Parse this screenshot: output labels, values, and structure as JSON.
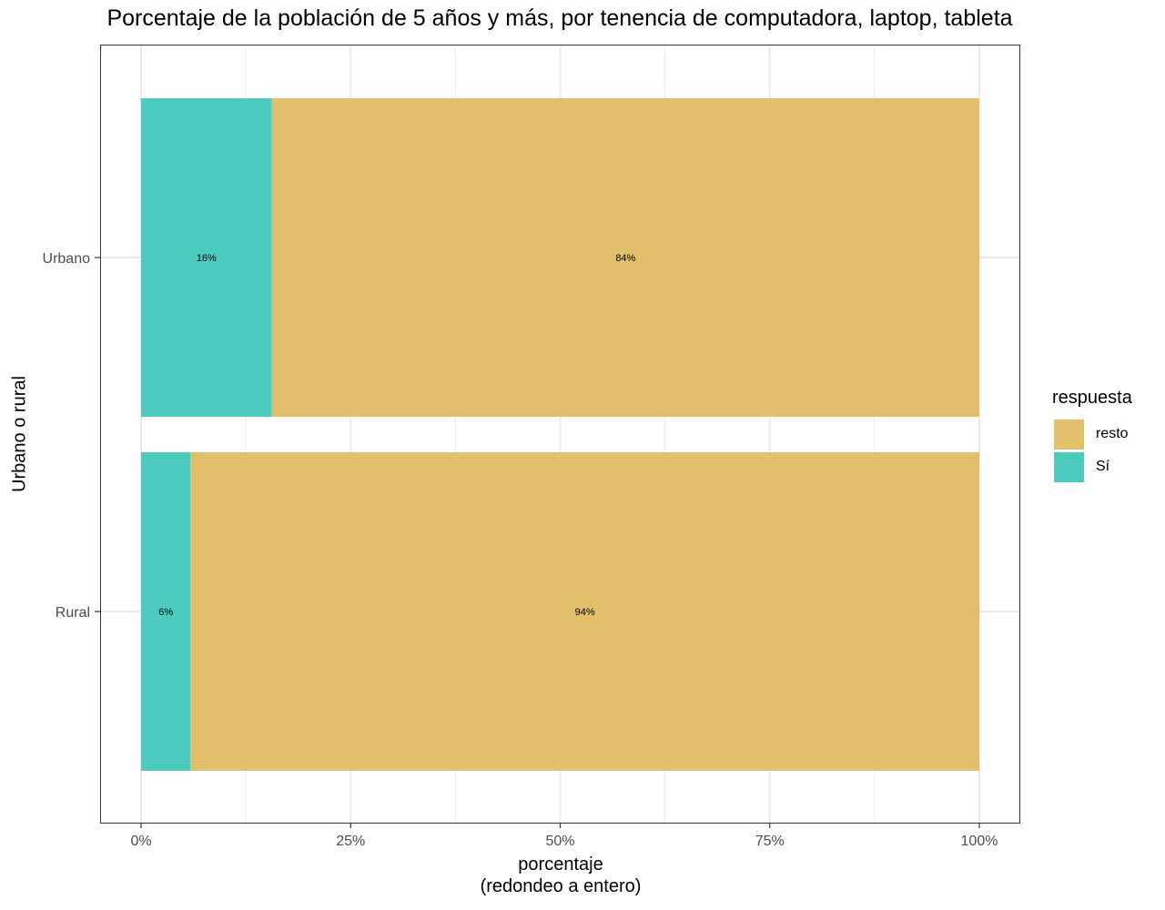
{
  "title": "Porcentaje de la población de 5 años y más, por tenencia de computadora, laptop, tableta",
  "chart_data": {
    "type": "bar",
    "orientation": "horizontal",
    "stacked": true,
    "categories": [
      "Urbano",
      "Rural"
    ],
    "series": [
      {
        "name": "Sí",
        "color": "#4ecbbf",
        "values": [
          15.6,
          5.9
        ],
        "labels": [
          "16%",
          "6%"
        ]
      },
      {
        "name": "resto",
        "color": "#e1bf6b",
        "values": [
          84.4,
          94.1
        ],
        "labels": [
          "84%",
          "94%"
        ]
      }
    ],
    "xlabel_line1": "porcentaje",
    "xlabel_line2": "(redondeo a entero)",
    "ylabel": "Urbano o rural",
    "xlim": [
      0,
      100
    ],
    "x_ticks": [
      0,
      25,
      50,
      75,
      100
    ],
    "x_tick_labels": [
      "0%",
      "25%",
      "50%",
      "75%",
      "100%"
    ],
    "grid": true,
    "legend": {
      "title": "respuesta",
      "position": "right",
      "entries": [
        {
          "label": "resto",
          "color": "#e1bf6b"
        },
        {
          "label": "Sí",
          "color": "#4ecbbf"
        }
      ]
    }
  }
}
